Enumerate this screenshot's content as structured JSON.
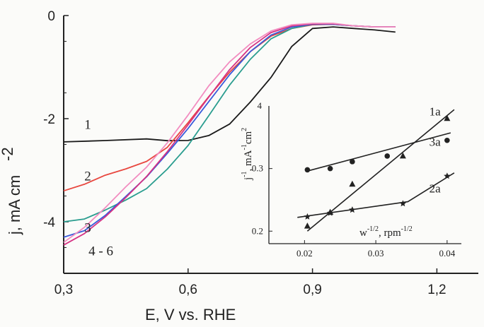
{
  "chart_data": [
    {
      "type": "line",
      "xlabel": "E, V vs. RHE",
      "ylabel": "j, mA cm",
      "ylabel_sup": "-2",
      "xlim": [
        0.3,
        1.3
      ],
      "ylim": [
        -5,
        0
      ],
      "xticks": [
        "0,3",
        "0,6",
        "0,9",
        "1,2"
      ],
      "xtick_values": [
        0.3,
        0.6,
        0.9,
        1.2
      ],
      "yticks": [
        "0",
        "-2",
        "-4"
      ],
      "ytick_values": [
        0,
        -2,
        -4
      ],
      "series": [
        {
          "label": "1",
          "color": "#1a1a1a",
          "x": [
            0.3,
            0.4,
            0.5,
            0.55,
            0.6,
            0.65,
            0.7,
            0.75,
            0.8,
            0.85,
            0.9,
            0.95,
            1.0,
            1.05,
            1.1
          ],
          "y": [
            -2.45,
            -2.45,
            -2.42,
            -2.43,
            -2.4,
            -2.3,
            -2.1,
            -1.7,
            -1.2,
            -0.6,
            -0.25,
            -0.22,
            -0.25,
            -0.28,
            -0.32
          ]
        },
        {
          "label": "2",
          "color": "#e8473f",
          "x": [
            0.3,
            0.35,
            0.4,
            0.45,
            0.5,
            0.55,
            0.6,
            0.65,
            0.7,
            0.75,
            0.8,
            0.85,
            0.9,
            0.95,
            1.0,
            1.05,
            1.1
          ],
          "y": [
            -3.4,
            -3.3,
            -3.1,
            -2.95,
            -2.8,
            -2.55,
            -2.1,
            -1.6,
            -1.1,
            -0.7,
            -0.4,
            -0.25,
            -0.18,
            -0.17,
            -0.2,
            -0.22,
            -0.22
          ]
        },
        {
          "label": "3",
          "color": "#2a9d8f",
          "x": [
            0.3,
            0.35,
            0.4,
            0.45,
            0.5,
            0.55,
            0.6,
            0.65,
            0.7,
            0.75,
            0.8,
            0.85,
            0.9,
            0.95,
            1.0,
            1.05,
            1.1
          ],
          "y": [
            -4.0,
            -3.95,
            -3.75,
            -3.55,
            -3.35,
            -3.0,
            -2.55,
            -1.95,
            -1.35,
            -0.85,
            -0.45,
            -0.25,
            -0.17,
            -0.17,
            -0.2,
            -0.22,
            -0.22
          ]
        },
        {
          "label": "4 - 6",
          "color": "#3b5bdb",
          "x": [
            0.3,
            0.35,
            0.4,
            0.45,
            0.5,
            0.55,
            0.6,
            0.65,
            0.7,
            0.75,
            0.8,
            0.85,
            0.9,
            0.95,
            1.0,
            1.05,
            1.1
          ],
          "y": [
            -4.3,
            -4.15,
            -3.85,
            -3.5,
            -3.15,
            -2.7,
            -2.2,
            -1.65,
            -1.15,
            -0.7,
            -0.38,
            -0.22,
            -0.17,
            -0.17,
            -0.2,
            -0.22,
            -0.22
          ]
        },
        {
          "label": "",
          "color": "#d63384",
          "x": [
            0.3,
            0.35,
            0.4,
            0.45,
            0.5,
            0.55,
            0.6,
            0.65,
            0.7,
            0.75,
            0.8,
            0.85,
            0.9,
            0.95,
            1.0,
            1.05,
            1.1
          ],
          "y": [
            -4.45,
            -4.2,
            -3.9,
            -3.55,
            -3.15,
            -2.65,
            -2.1,
            -1.55,
            -1.05,
            -0.62,
            -0.33,
            -0.2,
            -0.16,
            -0.16,
            -0.2,
            -0.22,
            -0.22
          ]
        },
        {
          "label": "",
          "color": "#f28cc0",
          "x": [
            0.3,
            0.35,
            0.4,
            0.45,
            0.5,
            0.55,
            0.6,
            0.65,
            0.7,
            0.75,
            0.8,
            0.85,
            0.9,
            0.95,
            1.0,
            1.05,
            1.1
          ],
          "y": [
            -4.4,
            -4.1,
            -3.75,
            -3.35,
            -2.95,
            -2.45,
            -1.9,
            -1.35,
            -0.9,
            -0.55,
            -0.3,
            -0.18,
            -0.15,
            -0.15,
            -0.2,
            -0.22,
            -0.22
          ]
        }
      ],
      "curve_labels": [
        "1",
        "2",
        "3",
        "4 - 6"
      ]
    },
    {
      "type": "scatter",
      "xlabel": "w",
      "xlabel_sup": "-1/2",
      "xlabel_tail": ", rpm",
      "xlabel_tail_sup": "-1/2",
      "ylabel": "j",
      "ylabel_sup": "-1",
      "ylabel_tail": ", mA",
      "ylabel_tail_sup": "-1",
      "ylabel_unit": "cm",
      "ylabel_unit_sup": "2",
      "xlim": [
        0.015,
        0.042
      ],
      "ylim": [
        0.18,
        0.4
      ],
      "xticks": [
        "0.02",
        "0.03",
        "0.04"
      ],
      "xtick_values": [
        0.02,
        0.03,
        0.04
      ],
      "yticks": [
        "0.2",
        "0.3"
      ],
      "ytick_values": [
        0.2,
        0.3
      ],
      "top_tick": "4",
      "series": [
        {
          "name": "1a",
          "marker": "triangle",
          "x": [
            0.0204,
            0.0236,
            0.0267,
            0.0338,
            0.04
          ],
          "y": [
            0.208,
            0.23,
            0.275,
            0.32,
            0.38
          ],
          "fit": [
            [
              0.0204,
              0.2
            ],
            [
              0.041,
              0.394
            ]
          ]
        },
        {
          "name": "3a",
          "marker": "circle",
          "x": [
            0.0204,
            0.0236,
            0.0267,
            0.0316,
            0.04
          ],
          "y": [
            0.298,
            0.3,
            0.311,
            0.32,
            0.345
          ],
          "fit": [
            [
              0.0204,
              0.296
            ],
            [
              0.0405,
              0.357
            ]
          ]
        },
        {
          "name": "2a",
          "marker": "star",
          "x": [
            0.0204,
            0.0236,
            0.0267,
            0.0338,
            0.04
          ],
          "y": [
            0.223,
            0.229,
            0.234,
            0.244,
            0.288
          ],
          "fit": [
            [
              0.019,
              0.222
            ],
            [
              0.0345,
              0.247
            ],
            [
              0.0345,
              0.247
            ],
            [
              0.041,
              0.293
            ]
          ]
        }
      ]
    }
  ]
}
